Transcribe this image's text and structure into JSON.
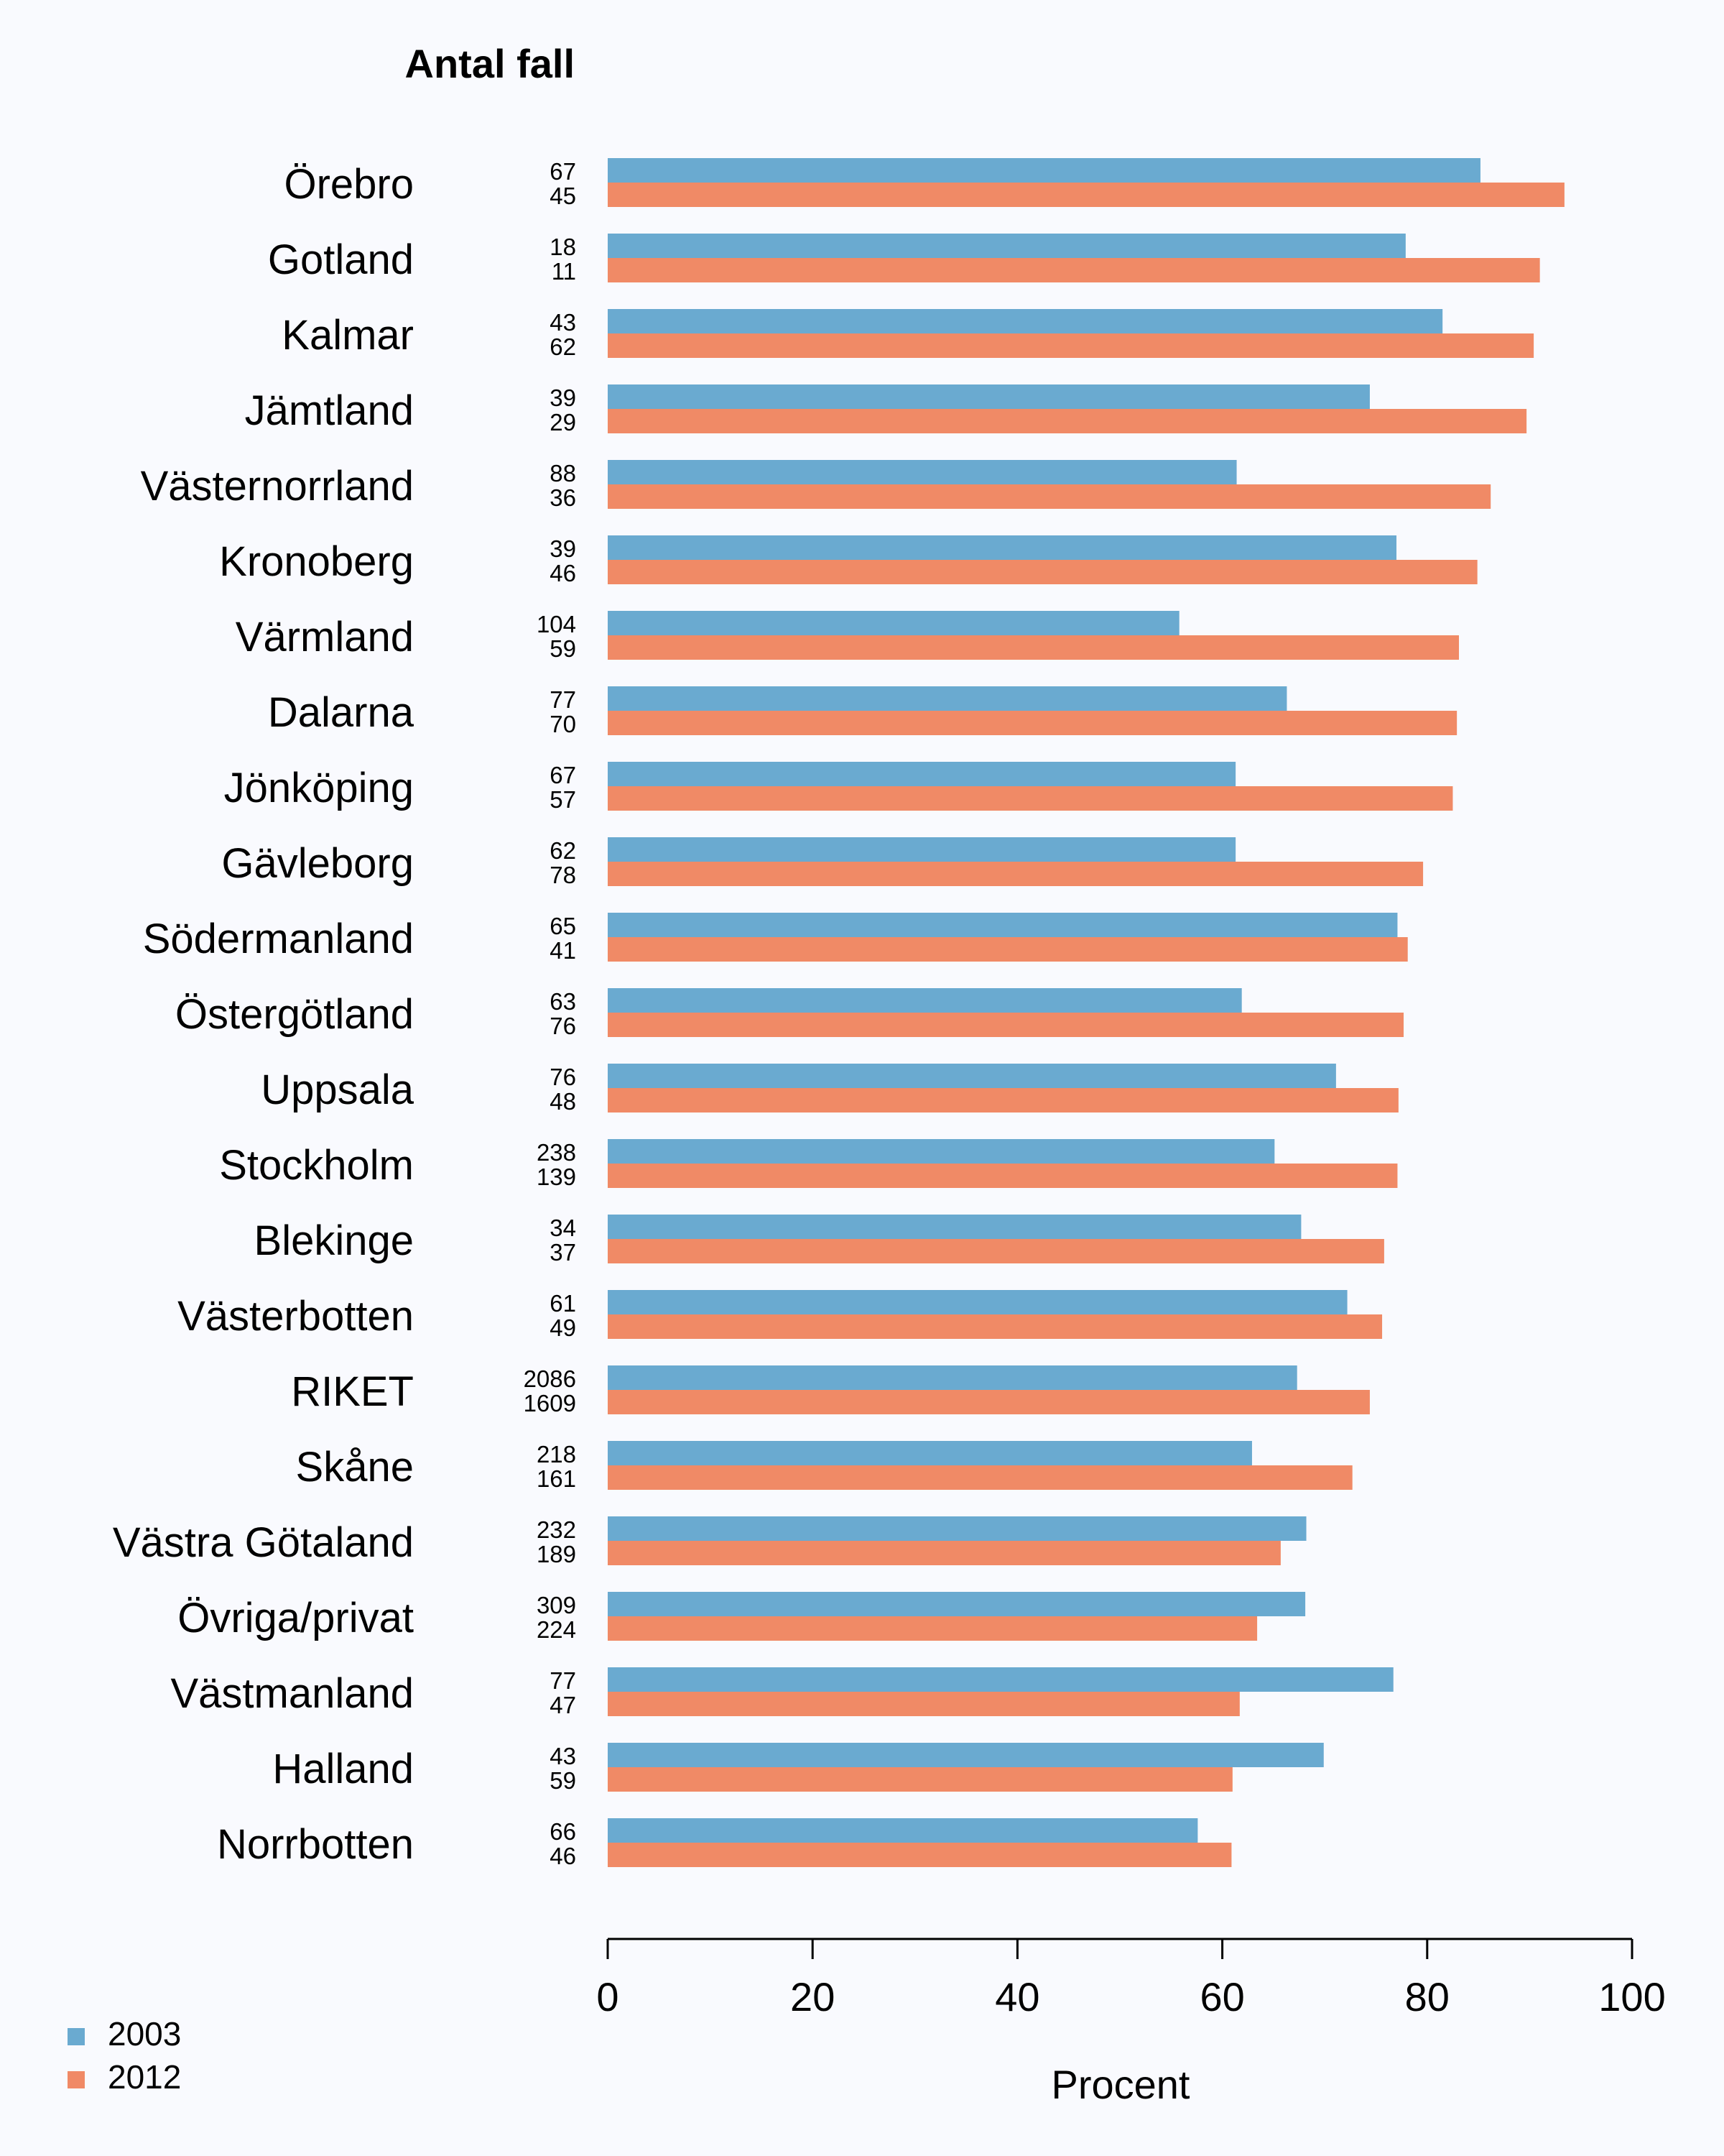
{
  "chart_data": {
    "type": "bar",
    "orientation": "horizontal",
    "count_header": "Antal fall",
    "xlabel": "Procent",
    "xlim": [
      0,
      100
    ],
    "xticks": [
      0,
      20,
      40,
      60,
      80,
      100
    ],
    "legend_position": "bottom-left",
    "series": [
      {
        "name": "2003",
        "color": "#6aaad0"
      },
      {
        "name": "2012",
        "color": "#f08a66"
      }
    ],
    "categories": [
      {
        "name": "Örebro",
        "counts": [
          "67",
          "45"
        ],
        "values": [
          85.2,
          93.4
        ]
      },
      {
        "name": "Gotland",
        "counts": [
          "18",
          "11"
        ],
        "values": [
          77.9,
          91.0
        ]
      },
      {
        "name": "Kalmar",
        "counts": [
          "43",
          "62"
        ],
        "values": [
          81.5,
          90.4
        ]
      },
      {
        "name": "Jämtland",
        "counts": [
          "39",
          "29"
        ],
        "values": [
          74.4,
          89.7
        ]
      },
      {
        "name": "Västernorrland",
        "counts": [
          "88",
          "36"
        ],
        "values": [
          61.4,
          86.2
        ]
      },
      {
        "name": "Kronoberg",
        "counts": [
          "39",
          "46"
        ],
        "values": [
          77.0,
          84.9
        ]
      },
      {
        "name": "Värmland",
        "counts": [
          "104",
          "59"
        ],
        "values": [
          55.8,
          83.1
        ]
      },
      {
        "name": "Dalarna",
        "counts": [
          "77",
          "70"
        ],
        "values": [
          66.3,
          82.9
        ]
      },
      {
        "name": "Jönköping",
        "counts": [
          "67",
          "57"
        ],
        "values": [
          61.3,
          82.5
        ]
      },
      {
        "name": "Gävleborg",
        "counts": [
          "62",
          "78"
        ],
        "values": [
          61.3,
          79.6
        ]
      },
      {
        "name": "Södermanland",
        "counts": [
          "65",
          "41"
        ],
        "values": [
          77.1,
          78.1
        ]
      },
      {
        "name": "Östergötland",
        "counts": [
          "63",
          "76"
        ],
        "values": [
          61.9,
          77.7
        ]
      },
      {
        "name": "Uppsala",
        "counts": [
          "76",
          "48"
        ],
        "values": [
          71.1,
          77.2
        ]
      },
      {
        "name": "Stockholm",
        "counts": [
          "238",
          "139"
        ],
        "values": [
          65.1,
          77.1
        ]
      },
      {
        "name": "Blekinge",
        "counts": [
          "34",
          "37"
        ],
        "values": [
          67.7,
          75.8
        ]
      },
      {
        "name": "Västerbotten",
        "counts": [
          "61",
          "49"
        ],
        "values": [
          72.2,
          75.6
        ]
      },
      {
        "name": "RIKET",
        "counts": [
          "2086",
          "1609"
        ],
        "values": [
          67.3,
          74.4
        ]
      },
      {
        "name": "Skåne",
        "counts": [
          "218",
          "161"
        ],
        "values": [
          62.9,
          72.7
        ]
      },
      {
        "name": "Västra Götaland",
        "counts": [
          "232",
          "189"
        ],
        "values": [
          68.2,
          65.7
        ]
      },
      {
        "name": "Övriga/privat",
        "counts": [
          "309",
          "224"
        ],
        "values": [
          68.1,
          63.4
        ]
      },
      {
        "name": "Västmanland",
        "counts": [
          "77",
          "47"
        ],
        "values": [
          76.7,
          61.7
        ]
      },
      {
        "name": "Halland",
        "counts": [
          "43",
          "59"
        ],
        "values": [
          69.9,
          61.0
        ]
      },
      {
        "name": "Norrbotten",
        "counts": [
          "66",
          "46"
        ],
        "values": [
          57.6,
          60.9
        ]
      }
    ]
  }
}
